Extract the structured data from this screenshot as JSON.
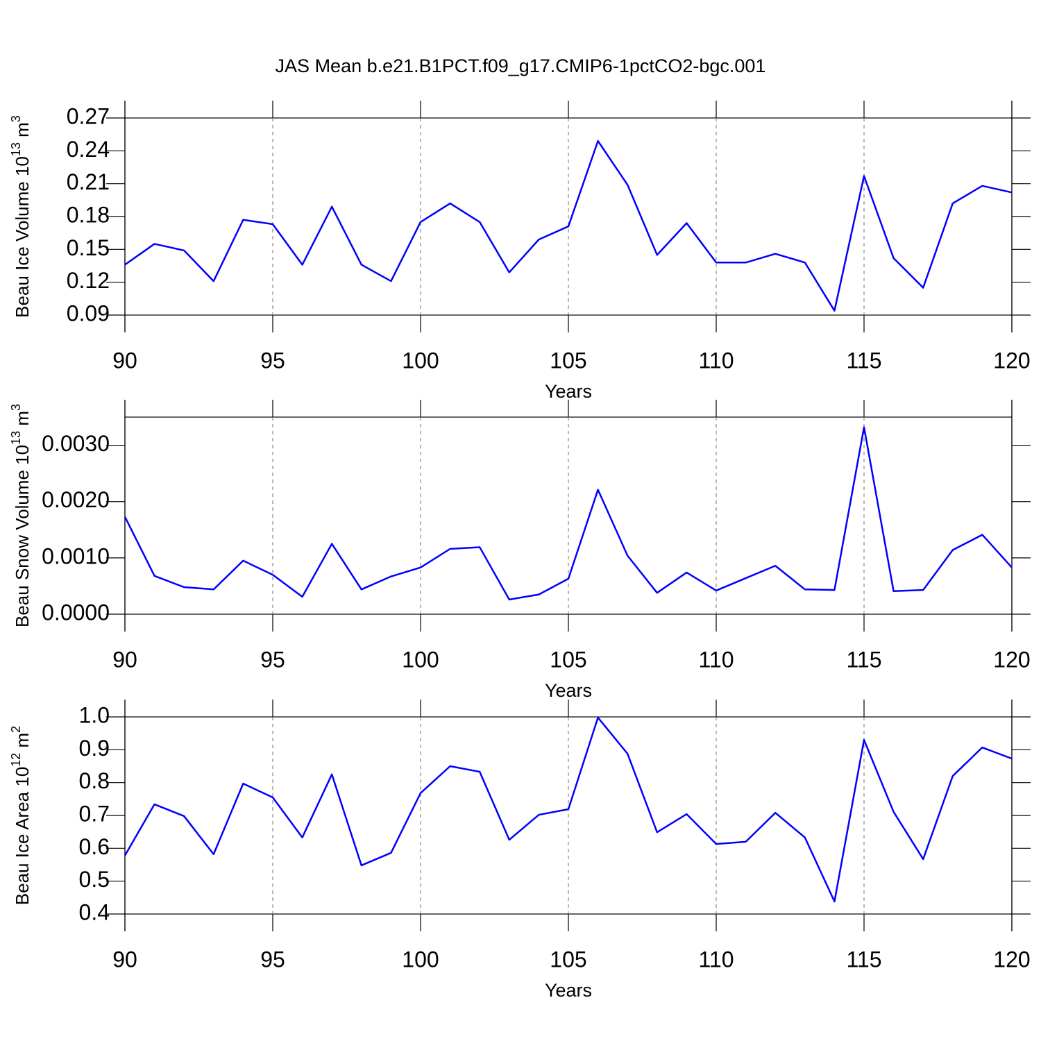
{
  "title": "JAS Mean b.e21.B1PCT.f09_g17.CMIP6-1pctCO2-bgc.001",
  "chart_data": [
    {
      "type": "line",
      "x": [
        90,
        91,
        92,
        93,
        94,
        95,
        96,
        97,
        98,
        99,
        100,
        101,
        102,
        103,
        104,
        105,
        106,
        107,
        108,
        109,
        110,
        111,
        112,
        113,
        114,
        115,
        116,
        117,
        118,
        119,
        120
      ],
      "xlim": [
        90,
        120
      ],
      "xticks": [
        90,
        95,
        100,
        105,
        110,
        115,
        120
      ],
      "xlabel": "Years",
      "xgrid": true,
      "ylabel": [
        {
          "text": "Beau Ice Volume 10"
        },
        {
          "text": "13",
          "sup": true
        },
        {
          "text": " m"
        },
        {
          "text": "3",
          "sup": true
        }
      ],
      "ylim": [
        0.09,
        0.27
      ],
      "yticks": [
        0.09,
        0.12,
        0.15,
        0.18,
        0.21,
        0.24,
        0.27
      ],
      "series": [
        {
          "color": "#0000ff",
          "values": [
            0.136,
            0.155,
            0.149,
            0.121,
            0.177,
            0.173,
            0.136,
            0.189,
            0.136,
            0.121,
            0.175,
            0.192,
            0.175,
            0.129,
            0.159,
            0.171,
            0.249,
            0.209,
            0.145,
            0.174,
            0.138,
            0.138,
            0.146,
            0.138,
            0.094,
            0.217,
            0.142,
            0.115,
            0.192,
            0.208,
            0.202
          ]
        }
      ]
    },
    {
      "type": "line",
      "x": [
        90,
        91,
        92,
        93,
        94,
        95,
        96,
        97,
        98,
        99,
        100,
        101,
        102,
        103,
        104,
        105,
        106,
        107,
        108,
        109,
        110,
        111,
        112,
        113,
        114,
        115,
        116,
        117,
        118,
        119,
        120
      ],
      "xlim": [
        90,
        120
      ],
      "xticks": [
        90,
        95,
        100,
        105,
        110,
        115,
        120
      ],
      "xlabel": "Years",
      "xgrid": true,
      "ylabel": [
        {
          "text": "Beau Snow Volume 10"
        },
        {
          "text": "13",
          "sup": true
        },
        {
          "text": " m"
        },
        {
          "text": "3",
          "sup": true
        }
      ],
      "ylim": [
        0,
        0.0035
      ],
      "yticks": [
        {
          "value": 0,
          "label": "0.0000"
        },
        {
          "value": 0.001,
          "label": "0.0010"
        },
        {
          "value": 0.002,
          "label": "0.0020"
        },
        {
          "value": 0.003,
          "label": "0.0030"
        }
      ],
      "series": [
        {
          "color": "#0000ff",
          "values": [
            0.00173,
            0.00068,
            0.00048,
            0.00044,
            0.00095,
            0.0007,
            0.00031,
            0.00125,
            0.00044,
            0.00067,
            0.00083,
            0.00116,
            0.00119,
            0.00026,
            0.00035,
            0.00063,
            0.00221,
            0.00104,
            0.00038,
            0.00074,
            0.00042,
            0.00064,
            0.00086,
            0.00044,
            0.00043,
            0.00332,
            0.00041,
            0.00043,
            0.00114,
            0.00141,
            0.00083
          ]
        }
      ]
    },
    {
      "type": "line",
      "x": [
        90,
        91,
        92,
        93,
        94,
        95,
        96,
        97,
        98,
        99,
        100,
        101,
        102,
        103,
        104,
        105,
        106,
        107,
        108,
        109,
        110,
        111,
        112,
        113,
        114,
        115,
        116,
        117,
        118,
        119,
        120
      ],
      "xlim": [
        90,
        120
      ],
      "xticks": [
        90,
        95,
        100,
        105,
        110,
        115,
        120
      ],
      "xlabel": "Years",
      "xgrid": true,
      "ylabel": [
        {
          "text": "Beau Ice Area 10"
        },
        {
          "text": "12",
          "sup": true
        },
        {
          "text": " m"
        },
        {
          "text": "2",
          "sup": true
        }
      ],
      "ylim": [
        0.4,
        1.0
      ],
      "yticks": [
        0.4,
        0.5,
        0.6,
        0.7,
        0.8,
        0.9,
        {
          "value": 1.0,
          "label": "1.0"
        }
      ],
      "series": [
        {
          "color": "#0000ff",
          "values": [
            0.578,
            0.734,
            0.698,
            0.582,
            0.797,
            0.755,
            0.633,
            0.825,
            0.548,
            0.586,
            0.768,
            0.85,
            0.833,
            0.626,
            0.702,
            0.719,
            0.998,
            0.888,
            0.649,
            0.704,
            0.613,
            0.62,
            0.708,
            0.633,
            0.438,
            0.93,
            0.711,
            0.567,
            0.82,
            0.907,
            0.873
          ]
        }
      ]
    }
  ]
}
